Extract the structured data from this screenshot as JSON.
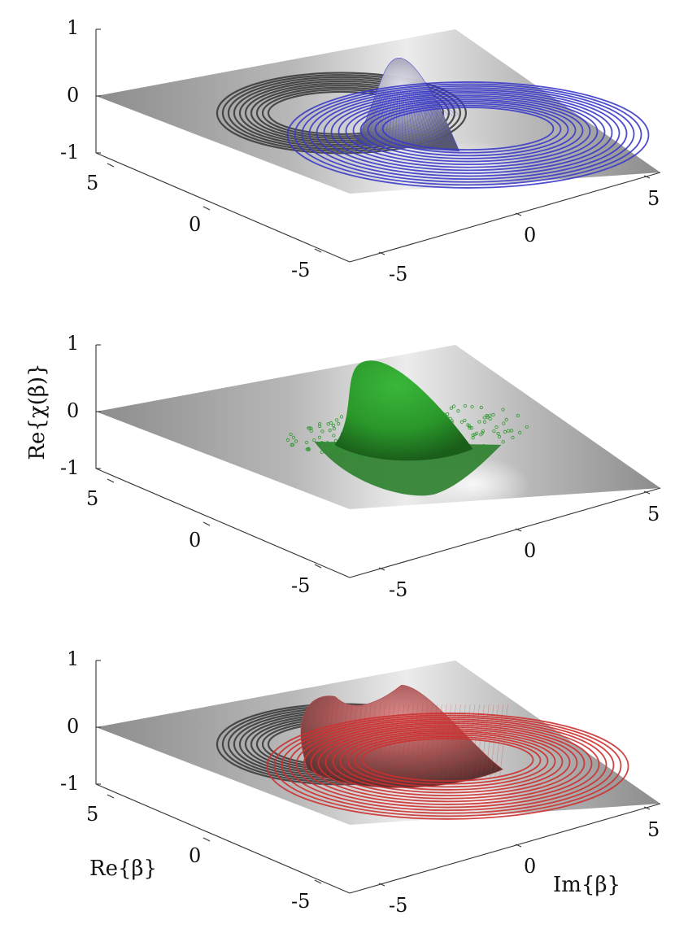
{
  "chart_data": [
    {
      "type": "surface",
      "panel": "top",
      "zlim": [
        -1,
        1
      ],
      "xlim": [
        -5,
        5
      ],
      "ylim": [
        -5,
        5
      ],
      "z_ticks": [
        "1",
        "0",
        "-1"
      ],
      "re_ticks": [
        "5",
        "0",
        "-5"
      ],
      "im_ticks": [
        "-5",
        "0",
        "5"
      ],
      "surface_color": "#4a4ad8",
      "ring_color_back": "#3c3c3c",
      "ring_color_front": "#3a3ac8",
      "style": "wireframe-rings"
    },
    {
      "type": "surface",
      "panel": "middle",
      "zlim": [
        -1,
        1
      ],
      "xlim": [
        -5,
        5
      ],
      "ylim": [
        -5,
        5
      ],
      "z_ticks": [
        "1",
        "0",
        "-1"
      ],
      "re_ticks": [
        "5",
        "0",
        "-5"
      ],
      "im_ticks": [
        "-5",
        "0",
        "5"
      ],
      "surface_color": "#2e9a2e",
      "zlabel": "Re{χ(β)}",
      "style": "smooth-surface-with-scatter"
    },
    {
      "type": "surface",
      "panel": "bottom",
      "zlim": [
        -1,
        1
      ],
      "xlim": [
        -5,
        5
      ],
      "ylim": [
        -5,
        5
      ],
      "z_ticks": [
        "1",
        "0",
        "-1"
      ],
      "re_ticks": [
        "5",
        "0",
        "-5"
      ],
      "im_ticks": [
        "-5",
        "0",
        "5"
      ],
      "surface_color": "#b04848",
      "ring_color_back": "#3c3c3c",
      "ring_color_front": "#cc3030",
      "xlabel": "Re{β}",
      "ylabel": "Im{β}",
      "style": "wireframe-rings"
    }
  ]
}
